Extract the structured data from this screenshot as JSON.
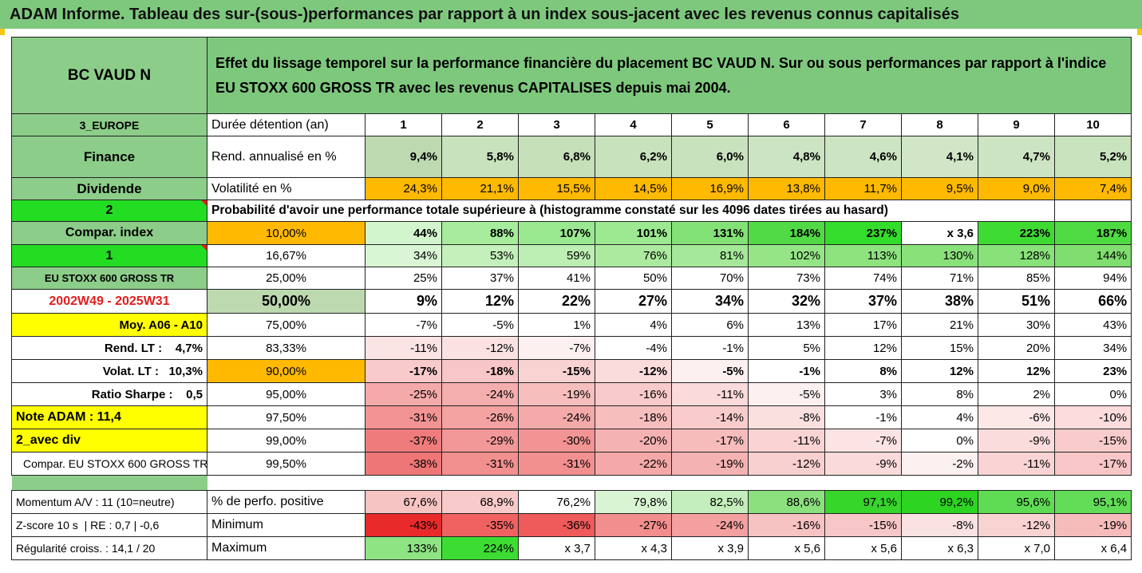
{
  "title": "ADAM Informe. Tableau des sur-(sous-)performances par rapport à un index sous-jacent avec les revenus connus capitalisés",
  "header": {
    "fund": "BC VAUD N",
    "description": "Effet du lissage temporel sur la performance financière du placement BC VAUD N. Sur ou sous performances par rapport à l'indice EU STOXX 600 GROSS TR avec les revenus CAPITALISES depuis mai 2004."
  },
  "periods_row": {
    "label1": "3_EUROPE",
    "label2": "Durée détention (an)",
    "values": [
      "1",
      "2",
      "3",
      "4",
      "5",
      "6",
      "7",
      "8",
      "9",
      "10"
    ]
  },
  "return_row": {
    "label1": "Finance",
    "label2": "Rend. annualisé en %",
    "values": [
      "9,4%",
      "5,8%",
      "6,8%",
      "6,2%",
      "6,0%",
      "4,8%",
      "4,6%",
      "4,1%",
      "4,7%",
      "5,2%"
    ]
  },
  "vol_row": {
    "label1": "Dividende",
    "label2": "Volatilité en %",
    "values": [
      "24,3%",
      "21,1%",
      "15,5%",
      "14,5%",
      "16,9%",
      "13,8%",
      "11,7%",
      "9,5%",
      "9,0%",
      "7,4%"
    ]
  },
  "prob_row": {
    "label1": "2",
    "text": "Probabilité d'avoir une performance totale supérieure à (histogramme constaté sur les 4096 dates tirées au hasard)"
  },
  "quantile_rows": [
    {
      "label": "Compar. index",
      "pct": "10,00%",
      "values": [
        "44%",
        "88%",
        "107%",
        "101%",
        "131%",
        "184%",
        "237%",
        "x 3,6",
        "223%",
        "187%"
      ]
    },
    {
      "label": "1",
      "pct": "16,67%",
      "values": [
        "34%",
        "53%",
        "59%",
        "76%",
        "81%",
        "102%",
        "113%",
        "130%",
        "128%",
        "144%"
      ]
    },
    {
      "label": "EU STOXX 600 GROSS TR",
      "pct": "25,00%",
      "values": [
        "25%",
        "37%",
        "41%",
        "50%",
        "70%",
        "73%",
        "74%",
        "71%",
        "85%",
        "94%"
      ]
    },
    {
      "label": "2002W49 - 2025W31",
      "pct": "50,00%",
      "values": [
        "9%",
        "12%",
        "22%",
        "27%",
        "34%",
        "32%",
        "37%",
        "38%",
        "51%",
        "66%"
      ]
    },
    {
      "label": "Moy. A06 - A10",
      "pct": "75,00%",
      "values": [
        "-7%",
        "-5%",
        "1%",
        "4%",
        "6%",
        "13%",
        "17%",
        "21%",
        "30%",
        "43%"
      ]
    },
    {
      "label": "Rend. LT :    4,7%",
      "pct": "83,33%",
      "values": [
        "-11%",
        "-12%",
        "-7%",
        "-4%",
        "-1%",
        "5%",
        "12%",
        "15%",
        "20%",
        "34%"
      ]
    },
    {
      "label": "Volat. LT :   10,3%",
      "pct": "90,00%",
      "values": [
        "-17%",
        "-18%",
        "-15%",
        "-12%",
        "-5%",
        "-1%",
        "8%",
        "12%",
        "12%",
        "23%"
      ]
    },
    {
      "label": "Ratio Sharpe :    0,5",
      "pct": "95,00%",
      "values": [
        "-25%",
        "-24%",
        "-19%",
        "-16%",
        "-11%",
        "-5%",
        "3%",
        "8%",
        "2%",
        "0%"
      ]
    },
    {
      "label": "Note ADAM : 11,4",
      "pct": "97,50%",
      "values": [
        "-31%",
        "-26%",
        "-24%",
        "-18%",
        "-14%",
        "-8%",
        "-1%",
        "4%",
        "-6%",
        "-10%"
      ]
    },
    {
      "label": "2_avec div",
      "pct": "99,00%",
      "values": [
        "-37%",
        "-29%",
        "-30%",
        "-20%",
        "-17%",
        "-11%",
        "-7%",
        "0%",
        "-9%",
        "-15%"
      ]
    },
    {
      "label": "Compar. EU STOXX 600 GROSS TR",
      "pct": "99,50%",
      "values": [
        "-38%",
        "-31%",
        "-31%",
        "-22%",
        "-19%",
        "-12%",
        "-9%",
        "-2%",
        "-11%",
        "-17%"
      ]
    }
  ],
  "stat_rows": [
    {
      "label1": "Momentum A/V : 11 (10=neutre)",
      "label2": "% de perfo. positive",
      "values": [
        "67,6%",
        "68,9%",
        "76,2%",
        "79,8%",
        "82,5%",
        "88,6%",
        "97,1%",
        "99,2%",
        "95,6%",
        "95,1%"
      ]
    },
    {
      "label1": "Z-score 10 s  | RE : 0,7 | -0,6",
      "label2": "Minimum",
      "values": [
        "-43%",
        "-35%",
        "-36%",
        "-27%",
        "-24%",
        "-16%",
        "-15%",
        "-8%",
        "-12%",
        "-19%"
      ]
    },
    {
      "label1": "Régularité croiss. : 14,1 / 20",
      "label2": "Maximum",
      "values": [
        "133%",
        "224%",
        "x 3,7",
        "x 4,3",
        "x 3,9",
        "x 5,6",
        "x 5,6",
        "x 6,3",
        "x 7,0",
        "x 6,4"
      ]
    }
  ],
  "colors": {
    "title_green": "#7ec87e",
    "label_green": "#8ccd8a",
    "bright_green": "#22dd22",
    "orange": "#ffb900",
    "yellow": "#ffff00",
    "red_text": "#e11d1d"
  },
  "quantile_cell_colors": [
    [
      "#d2f5cd",
      "#a6ec9c",
      "#9ae88f",
      "#9ce991",
      "#82e275",
      "#52d946",
      "#34dc2c",
      "#ffffff",
      "#3edc33",
      "#4edb42"
    ],
    [
      "#d9f6d4",
      "#c4f0bb",
      "#bdeeb3",
      "#acea9f",
      "#a6e899",
      "#95e587",
      "#8ee37f",
      "#89e17a",
      "#88e179",
      "#7fde6f"
    ],
    [
      "#ffffff",
      "#ffffff",
      "#ffffff",
      "#ffffff",
      "#ffffff",
      "#ffffff",
      "#ffffff",
      "#ffffff",
      "#ffffff",
      "#ffffff"
    ],
    [
      "#ffffff",
      "#ffffff",
      "#ffffff",
      "#ffffff",
      "#ffffff",
      "#ffffff",
      "#ffffff",
      "#ffffff",
      "#ffffff",
      "#ffffff"
    ],
    [
      "#ffffff",
      "#ffffff",
      "#ffffff",
      "#ffffff",
      "#ffffff",
      "#ffffff",
      "#ffffff",
      "#ffffff",
      "#ffffff",
      "#ffffff"
    ],
    [
      "#fbe4e4",
      "#fbe2e2",
      "#fdf0f0",
      "#ffffff",
      "#ffffff",
      "#ffffff",
      "#ffffff",
      "#ffffff",
      "#ffffff",
      "#ffffff"
    ],
    [
      "#f8caca",
      "#f8c6c6",
      "#f9d2d2",
      "#fbdcdc",
      "#fdf0f0",
      "#ffffff",
      "#ffffff",
      "#ffffff",
      "#ffffff",
      "#ffffff"
    ],
    [
      "#f5aaaa",
      "#f5aeae",
      "#f7bebe",
      "#f8caca",
      "#fadada",
      "#fdf0f0",
      "#ffffff",
      "#ffffff",
      "#ffffff",
      "#ffffff"
    ],
    [
      "#f29494",
      "#f4a2a2",
      "#f5aaaa",
      "#f7bebe",
      "#f9cccc",
      "#fbe0e0",
      "#ffffff",
      "#ffffff",
      "#fde8e8",
      "#fcdcdc"
    ],
    [
      "#ef7c7c",
      "#f29898",
      "#f29494",
      "#f5b2b2",
      "#f6bcbc",
      "#fad4d4",
      "#fce4e4",
      "#ffffff",
      "#fbdcdc",
      "#f9cccc"
    ],
    [
      "#ee7676",
      "#f29090",
      "#f29090",
      "#f4a8a8",
      "#f5b2b2",
      "#f9d0d0",
      "#fadada",
      "#fdf0f0",
      "#fad4d4",
      "#f8c6c6"
    ]
  ],
  "stat_cell_colors": [
    [
      "#f7c4c4",
      "#f8caca",
      "#ffffff",
      "#d8f4d2",
      "#c4eebb",
      "#8ce07e",
      "#36d62a",
      "#2dd422",
      "#5fdc54",
      "#63dc58"
    ],
    [
      "#e82a2a",
      "#f06262",
      "#ef5a5a",
      "#f28e8e",
      "#f4a0a0",
      "#f7c2c2",
      "#f7c6c6",
      "#fbe2e2",
      "#f9d2d2",
      "#f6bcbc"
    ],
    [
      "#8ee383",
      "#3ddc33",
      "#ffffff",
      "#ffffff",
      "#ffffff",
      "#ffffff",
      "#ffffff",
      "#ffffff",
      "#ffffff",
      "#ffffff"
    ]
  ],
  "return_cell_colors": [
    "#bcd9b0",
    "#c8e2bd",
    "#c6e0ba",
    "#c8e2bd",
    "#c8e2bd",
    "#cce4c2",
    "#cde4c3",
    "#d0e6c6",
    "#cde4c3",
    "#cae3bf"
  ],
  "vol_cell_colors": [
    "#ffb900",
    "#ffb900",
    "#ffb900",
    "#ffb900",
    "#ffb900",
    "#ffb900",
    "#ffb900",
    "#ffb900",
    "#ffb900",
    "#ffb900"
  ]
}
